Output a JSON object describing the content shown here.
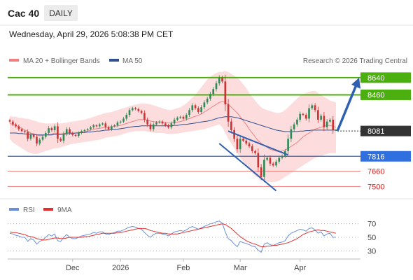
{
  "header": {
    "symbol": "Cac 40",
    "timeframe": "DAILY",
    "timestamp": "Wednesday, April 29, 2026 5:08:38 PM CET"
  },
  "legend": {
    "items": [
      {
        "label": "MA 20 + Bollinger Bands",
        "color": "#f08080"
      },
      {
        "label": "MA 50",
        "color": "#2f4f8f"
      }
    ],
    "rsi_items": [
      {
        "label": "RSI",
        "color": "#6a8fd8"
      },
      {
        "label": "9MA",
        "color": "#e03030"
      }
    ]
  },
  "watermark": "Research © 2026 Trading Central",
  "colors": {
    "up": "#2e8b57",
    "down": "#cc3333",
    "resistance": "#4caf10",
    "support_line": "#2f5fb0",
    "support_box": "#2f6fe0",
    "support_extra": "#f08080",
    "current_box": "#333333",
    "bollinger_fill": "#fcdcdc",
    "ma20": "#f08080",
    "ma50": "#2f4f8f",
    "arrow": "#2f5fb0"
  },
  "chart_data": [
    {
      "type": "candlestick",
      "y_min": 7400,
      "y_max": 8720,
      "x_labels": [
        {
          "label": "Dec",
          "index": 21
        },
        {
          "label": "2026",
          "index": 37
        },
        {
          "label": "Feb",
          "index": 58
        },
        {
          "label": "Mar",
          "index": 77
        },
        {
          "label": "Apr",
          "index": 97
        }
      ],
      "levels": [
        {
          "value": 8640,
          "label": "8640",
          "kind": "resistance"
        },
        {
          "value": 8460,
          "label": "8460",
          "kind": "resistance"
        },
        {
          "value": 8081,
          "label": "8081",
          "kind": "current"
        },
        {
          "value": 7816,
          "label": "7816",
          "kind": "support"
        },
        {
          "value": 7660,
          "label": "7660",
          "kind": "support_extra"
        },
        {
          "value": 7500,
          "label": "7500",
          "kind": "support_extra"
        }
      ],
      "closes": [
        8180,
        8150,
        8130,
        8100,
        8080,
        8070,
        8000,
        8040,
        8020,
        7950,
        7990,
        8020,
        8060,
        8110,
        8090,
        8130,
        8000,
        7980,
        8050,
        8100,
        8060,
        8040,
        8030,
        8060,
        8080,
        8090,
        8100,
        8120,
        8140,
        8130,
        8150,
        8160,
        8120,
        8100,
        8130,
        8140,
        8170,
        8180,
        8210,
        8250,
        8300,
        8320,
        8310,
        8290,
        8270,
        8200,
        8150,
        8100,
        8150,
        8170,
        8180,
        8160,
        8140,
        8120,
        8160,
        8200,
        8220,
        8230,
        8210,
        8250,
        8300,
        8350,
        8320,
        8280,
        8330,
        8380,
        8420,
        8470,
        8520,
        8580,
        8640,
        8600,
        8360,
        8180,
        8090,
        8000,
        7890,
        8000,
        7980,
        7950,
        7920,
        7870,
        7850,
        7700,
        7600,
        7780,
        7800,
        7740,
        7720,
        7760,
        7800,
        7820,
        7870,
        8000,
        8100,
        8150,
        8200,
        8260,
        8250,
        8210,
        8320,
        8350,
        8300,
        8200,
        8240,
        8120,
        8180,
        8200,
        8090,
        8090
      ],
      "ma20": [
        8160,
        8150,
        8140,
        8120,
        8110,
        8090,
        8080,
        8060,
        8050,
        8040,
        8030,
        8035,
        8040,
        8045,
        8050,
        8060,
        8055,
        8050,
        8055,
        8060,
        8065,
        8060,
        8060,
        8065,
        8070,
        8075,
        8080,
        8090,
        8100,
        8105,
        8110,
        8115,
        8120,
        8120,
        8125,
        8130,
        8135,
        8140,
        8150,
        8160,
        8170,
        8180,
        8190,
        8200,
        8200,
        8200,
        8195,
        8185,
        8180,
        8175,
        8175,
        8175,
        8170,
        8165,
        8165,
        8170,
        8175,
        8180,
        8190,
        8200,
        8210,
        8225,
        8235,
        8245,
        8260,
        8280,
        8300,
        8320,
        8340,
        8360,
        8380,
        8390,
        8380,
        8360,
        8330,
        8300,
        8270,
        8230,
        8190,
        8150,
        8100,
        8060,
        8020,
        7980,
        7950,
        7930,
        7910,
        7890,
        7880,
        7870,
        7865,
        7870,
        7880,
        7900,
        7920,
        7940,
        7960,
        7990,
        8020,
        8040,
        8060,
        8080,
        8100,
        8110,
        8120,
        8130,
        8140,
        8140,
        8130,
        8120
      ],
      "bb_upper": [
        8240,
        8230,
        8230,
        8220,
        8220,
        8210,
        8210,
        8200,
        8190,
        8180,
        8170,
        8165,
        8160,
        8160,
        8160,
        8165,
        8160,
        8160,
        8165,
        8170,
        8175,
        8180,
        8185,
        8190,
        8195,
        8200,
        8210,
        8220,
        8230,
        8240,
        8250,
        8260,
        8270,
        8275,
        8280,
        8290,
        8300,
        8310,
        8320,
        8330,
        8340,
        8350,
        8360,
        8365,
        8370,
        8370,
        8365,
        8360,
        8350,
        8340,
        8330,
        8320,
        8310,
        8300,
        8300,
        8310,
        8320,
        8330,
        8350,
        8370,
        8400,
        8430,
        8460,
        8500,
        8540,
        8580,
        8620,
        8650,
        8670,
        8690,
        8700,
        8700,
        8710,
        8700,
        8680,
        8660,
        8640,
        8610,
        8570,
        8530,
        8480,
        8440,
        8400,
        8360,
        8330,
        8310,
        8300,
        8290,
        8280,
        8270,
        8270,
        8280,
        8300,
        8330,
        8360,
        8390,
        8420,
        8450,
        8470,
        8480,
        8490,
        8500,
        8500,
        8480,
        8460,
        8440,
        8420,
        8400,
        8390,
        8380
      ],
      "bb_lower": [
        8000,
        7960,
        7940,
        7920,
        7900,
        7880,
        7860,
        7850,
        7840,
        7840,
        7850,
        7860,
        7870,
        7880,
        7890,
        7900,
        7900,
        7910,
        7920,
        7930,
        7940,
        7945,
        7950,
        7955,
        7960,
        7965,
        7970,
        7975,
        7980,
        7985,
        7990,
        8000,
        8010,
        8015,
        8020,
        8025,
        8030,
        8040,
        8050,
        8060,
        8070,
        8075,
        8080,
        8080,
        8080,
        8080,
        8075,
        8070,
        8065,
        8060,
        8060,
        8060,
        8055,
        8050,
        8050,
        8050,
        8055,
        8060,
        8065,
        8070,
        8075,
        8080,
        8085,
        8090,
        8095,
        8100,
        8110,
        8120,
        8130,
        8140,
        8150,
        8120,
        8060,
        8000,
        7950,
        7900,
        7850,
        7800,
        7760,
        7720,
        7680,
        7640,
        7610,
        7590,
        7570,
        7560,
        7550,
        7545,
        7545,
        7550,
        7560,
        7580,
        7600,
        7620,
        7640,
        7660,
        7680,
        7700,
        7720,
        7740,
        7760,
        7780,
        7800,
        7810,
        7820,
        7830,
        7840,
        7850,
        7850,
        7850
      ],
      "ma50": [
        8060,
        8060,
        8060,
        8055,
        8055,
        8050,
        8050,
        8045,
        8045,
        8040,
        8040,
        8040,
        8040,
        8040,
        8040,
        8045,
        8045,
        8045,
        8050,
        8050,
        8055,
        8055,
        8060,
        8060,
        8065,
        8065,
        8070,
        8070,
        8075,
        8080,
        8080,
        8085,
        8090,
        8090,
        8095,
        8100,
        8100,
        8105,
        8110,
        8115,
        8120,
        8125,
        8130,
        8130,
        8135,
        8135,
        8135,
        8135,
        8135,
        8135,
        8135,
        8135,
        8135,
        8135,
        8135,
        8140,
        8140,
        8145,
        8150,
        8150,
        8155,
        8160,
        8165,
        8170,
        8175,
        8180,
        8185,
        8190,
        8200,
        8210,
        8220,
        8225,
        8230,
        8230,
        8230,
        8225,
        8220,
        8210,
        8200,
        8190,
        8180,
        8170,
        8160,
        8150,
        8140,
        8130,
        8120,
        8110,
        8100,
        8090,
        8085,
        8080,
        8075,
        8075,
        8075,
        8075,
        8075,
        8080,
        8080,
        8085,
        8085,
        8090,
        8090,
        8090,
        8090,
        8090,
        8090,
        8090,
        8090,
        8090
      ]
    },
    {
      "type": "line",
      "y_min": 20,
      "y_max": 80,
      "yticks": [
        70,
        50,
        30
      ],
      "series": [
        {
          "name": "RSI",
          "values": [
            56,
            55,
            53,
            52,
            50,
            50,
            44,
            48,
            46,
            40,
            44,
            46,
            50,
            54,
            52,
            55,
            45,
            44,
            50,
            54,
            50,
            48,
            48,
            50,
            52,
            53,
            54,
            55,
            57,
            56,
            58,
            58,
            55,
            54,
            56,
            57,
            59,
            59,
            61,
            63,
            65,
            66,
            65,
            63,
            62,
            57,
            53,
            50,
            54,
            56,
            56,
            55,
            54,
            52,
            55,
            58,
            59,
            60,
            59,
            61,
            64,
            66,
            64,
            62,
            64,
            66,
            68,
            70,
            71,
            73,
            74,
            71,
            58,
            48,
            45,
            40,
            36,
            44,
            42,
            41,
            39,
            37,
            36,
            31,
            28,
            40,
            42,
            39,
            38,
            40,
            42,
            43,
            45,
            52,
            56,
            58,
            60,
            62,
            61,
            59,
            63,
            64,
            61,
            56,
            58,
            52,
            55,
            56,
            50,
            50
          ]
        },
        {
          "name": "9MA",
          "values": [
            58,
            57,
            57,
            56,
            55,
            54,
            52,
            51,
            50,
            48,
            47,
            46,
            46,
            47,
            48,
            49,
            49,
            48,
            48,
            49,
            50,
            50,
            50,
            50,
            50,
            51,
            51,
            52,
            53,
            54,
            55,
            56,
            56,
            56,
            56,
            56,
            57,
            57,
            58,
            59,
            60,
            61,
            62,
            63,
            63,
            63,
            62,
            60,
            59,
            58,
            57,
            56,
            56,
            55,
            55,
            55,
            55,
            56,
            57,
            58,
            59,
            60,
            61,
            62,
            63,
            64,
            65,
            66,
            67,
            68,
            69,
            70,
            69,
            66,
            63,
            59,
            55,
            51,
            48,
            45,
            43,
            41,
            40,
            38,
            36,
            36,
            37,
            37,
            38,
            38,
            39,
            40,
            41,
            42,
            44,
            46,
            48,
            51,
            54,
            56,
            58,
            59,
            60,
            61,
            60,
            60,
            59,
            58,
            57,
            56
          ]
        }
      ]
    }
  ]
}
